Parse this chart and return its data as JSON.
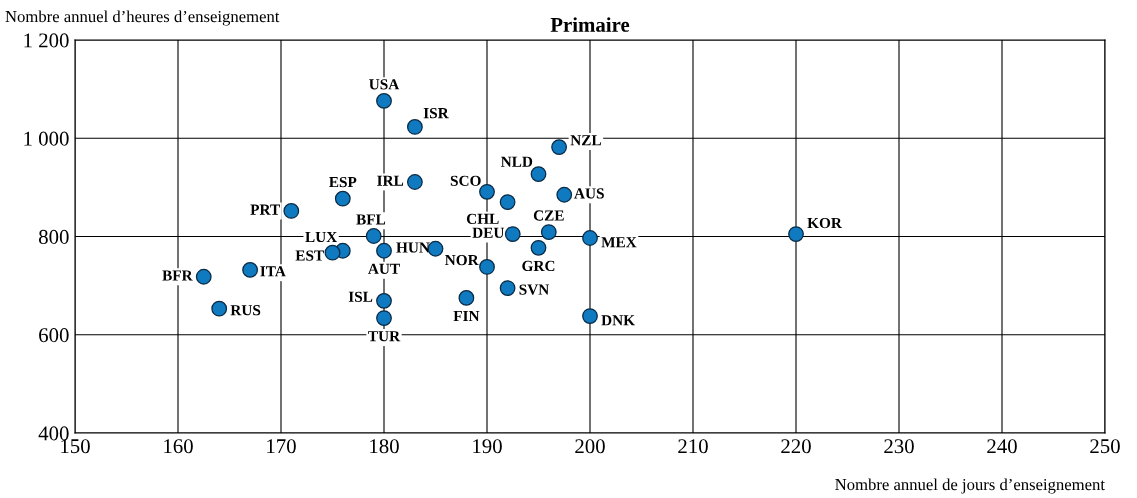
{
  "chart_data": {
    "type": "scatter",
    "title": "Primaire",
    "xlabel": "Nombre annuel de jours d’enseignement",
    "ylabel": "Nombre annuel d’heures d’enseignement",
    "series": [
      {
        "color": "#0f7ac0",
        "x": [
          180,
          183,
          197,
          195,
          190,
          183,
          197.5,
          176,
          192,
          171,
          196,
          220,
          192.5,
          179,
          200,
          195,
          185,
          176,
          180,
          175,
          190,
          167,
          162.5,
          192,
          188,
          180,
          164,
          200,
          180
        ],
        "values": [
          1076,
          1023,
          982,
          927,
          891,
          911,
          885,
          877,
          870,
          852,
          809,
          805,
          805,
          801,
          797,
          777,
          775,
          771,
          771,
          767,
          738,
          732,
          718,
          695,
          675,
          669,
          653,
          638,
          634
        ]
      }
    ],
    "annotations": [
      {
        "text": "USA",
        "x": 180,
        "y": 1076
      },
      {
        "text": "ISR",
        "x": 183,
        "y": 1023
      },
      {
        "text": "NZL",
        "x": 197,
        "y": 982
      },
      {
        "text": "NLD",
        "x": 195,
        "y": 927
      },
      {
        "text": "SCO",
        "x": 190,
        "y": 891
      },
      {
        "text": "IRL",
        "x": 183,
        "y": 911
      },
      {
        "text": "AUS",
        "x": 197.5,
        "y": 885
      },
      {
        "text": "ESP",
        "x": 176,
        "y": 877
      },
      {
        "text": "CHL",
        "x": 192,
        "y": 870
      },
      {
        "text": "PRT",
        "x": 171,
        "y": 852
      },
      {
        "text": "CZE",
        "x": 196,
        "y": 809
      },
      {
        "text": "KOR",
        "x": 220,
        "y": 805
      },
      {
        "text": "DEU",
        "x": 192.5,
        "y": 805
      },
      {
        "text": "BFL",
        "x": 179,
        "y": 801
      },
      {
        "text": "MEX",
        "x": 200,
        "y": 797
      },
      {
        "text": "GRC",
        "x": 195,
        "y": 777
      },
      {
        "text": "HUN",
        "x": 185,
        "y": 775
      },
      {
        "text": "LUX",
        "x": 176,
        "y": 771
      },
      {
        "text": "AUT",
        "x": 180,
        "y": 771
      },
      {
        "text": "EST",
        "x": 175,
        "y": 767
      },
      {
        "text": "NOR",
        "x": 190,
        "y": 738
      },
      {
        "text": "ITA",
        "x": 167,
        "y": 732
      },
      {
        "text": "BFR",
        "x": 162.5,
        "y": 718
      },
      {
        "text": "SVN",
        "x": 192,
        "y": 695
      },
      {
        "text": "FIN",
        "x": 188,
        "y": 675
      },
      {
        "text": "ISL",
        "x": 180,
        "y": 669
      },
      {
        "text": "RUS",
        "x": 164,
        "y": 653
      },
      {
        "text": "DNK",
        "x": 200,
        "y": 638
      },
      {
        "text": "TUR",
        "x": 180,
        "y": 634
      }
    ],
    "xlim": [
      150,
      250
    ],
    "xticks": [
      150,
      160,
      170,
      180,
      190,
      200,
      210,
      220,
      230,
      240,
      250
    ],
    "ylim": [
      400,
      1200
    ],
    "yticks": [
      400,
      600,
      800,
      {
        "value": 1000,
        "label": "1 000"
      },
      {
        "value": 1200,
        "label": "1 200"
      }
    ],
    "grid": true,
    "marker": "circle"
  }
}
